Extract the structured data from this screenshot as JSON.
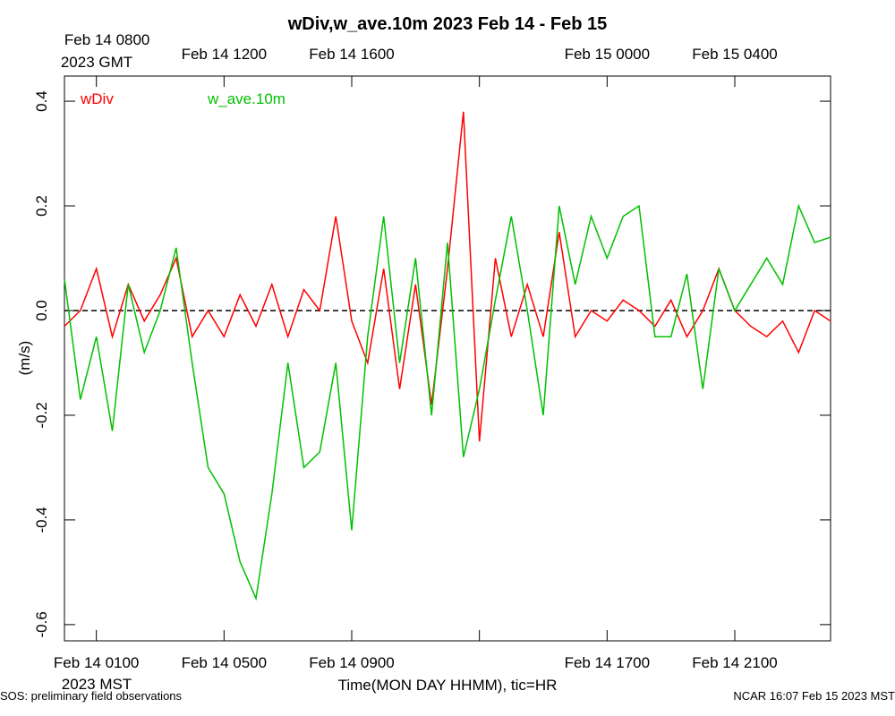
{
  "chart_data": {
    "type": "line",
    "title": "wDiv,w_ave.10m 2023 Feb 14 - Feb 15",
    "ylabel": "(m/s)",
    "xlabel": "Time(MON DAY HHMM), tic=HR",
    "top_axis_note": "2023 GMT",
    "bottom_axis_note": "2023 MST",
    "footer_left": "SOS: preliminary field observations",
    "footer_right": "NCAR 16:07 Feb 15 2023 MST",
    "zero_line": true,
    "xlim": [
      0,
      24
    ],
    "ylim": [
      -0.631,
      0.448
    ],
    "yticks": [
      {
        "value": -0.6,
        "label": "-0.6"
      },
      {
        "value": -0.4,
        "label": "-0.4"
      },
      {
        "value": -0.2,
        "label": "-0.2"
      },
      {
        "value": 0,
        "label": "0.0"
      },
      0.2,
      0.4
    ],
    "xticks": [
      {
        "value": 1,
        "label": "Feb 14 0100"
      },
      {
        "value": 5,
        "label": "Feb 14 0500"
      },
      {
        "value": 9,
        "label": "Feb 14 0900"
      },
      {
        "value": 13,
        "label": null
      },
      {
        "value": 17,
        "label": "Feb 14 1700"
      },
      {
        "value": 21,
        "label": "Feb 14 2100"
      }
    ],
    "top_xticks": [
      {
        "value": 1,
        "label": "Feb 14 0800"
      },
      {
        "value": 5,
        "label": "Feb 14 1200"
      },
      {
        "value": 9,
        "label": "Feb 14 1600"
      },
      {
        "value": 13,
        "label": null
      },
      {
        "value": 17,
        "label": "Feb 15 0000"
      },
      {
        "value": 21,
        "label": "Feb 15 0400"
      }
    ],
    "x": [
      0,
      0.5,
      1,
      1.5,
      2,
      2.5,
      3,
      3.5,
      4,
      4.5,
      5,
      5.5,
      6,
      6.5,
      7,
      7.5,
      8,
      8.5,
      9,
      9.5,
      10,
      10.5,
      11,
      11.5,
      12,
      12.5,
      13,
      13.5,
      14,
      14.5,
      15,
      15.5,
      16,
      16.5,
      17,
      17.5,
      18,
      18.5,
      19,
      19.5,
      20,
      20.5,
      21,
      21.5,
      22,
      22.5,
      23,
      23.5,
      24
    ],
    "series": [
      {
        "name": "wDiv",
        "color": "#ff0000",
        "values": [
          -0.03,
          0.0,
          0.08,
          -0.05,
          0.05,
          -0.02,
          0.03,
          0.1,
          -0.05,
          0.0,
          -0.05,
          0.03,
          -0.03,
          0.05,
          -0.05,
          0.04,
          0.0,
          0.18,
          -0.02,
          -0.1,
          0.08,
          -0.15,
          0.05,
          -0.18,
          0.08,
          0.38,
          -0.25,
          0.1,
          -0.05,
          0.05,
          -0.05,
          0.15,
          -0.05,
          0.0,
          -0.02,
          0.02,
          0.0,
          -0.03,
          0.02,
          -0.05,
          0.0,
          0.08,
          0.0,
          -0.03,
          -0.05,
          -0.02,
          -0.08,
          0.0,
          -0.02
        ]
      },
      {
        "name": "w_ave.10m",
        "color": "#00c000",
        "values": [
          0.06,
          -0.17,
          -0.05,
          -0.23,
          0.05,
          -0.08,
          0.0,
          0.12,
          -0.1,
          -0.3,
          -0.35,
          -0.48,
          -0.55,
          -0.35,
          -0.1,
          -0.3,
          -0.27,
          -0.1,
          -0.42,
          -0.05,
          0.18,
          -0.1,
          0.1,
          -0.2,
          0.13,
          -0.28,
          -0.15,
          0.02,
          0.18,
          0.0,
          -0.2,
          0.2,
          0.05,
          0.18,
          0.1,
          0.18,
          0.2,
          -0.05,
          -0.05,
          0.07,
          -0.15,
          0.08,
          0.0,
          0.05,
          0.1,
          0.05,
          0.2,
          0.13,
          0.14
        ]
      }
    ]
  }
}
